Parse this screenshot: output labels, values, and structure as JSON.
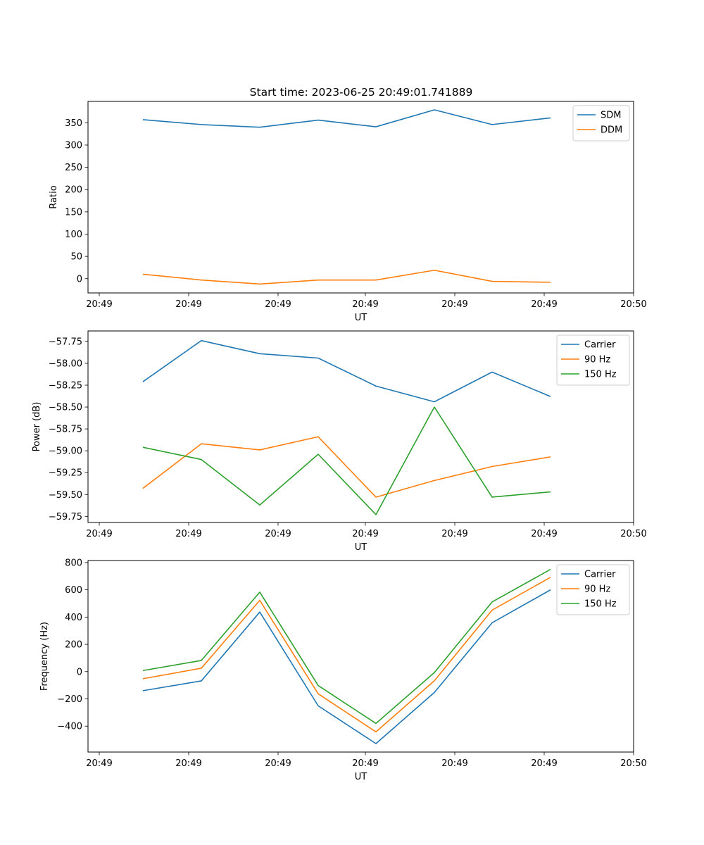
{
  "figure": {
    "title": "Start time: 2023-06-25 20:49:01.741889"
  },
  "chart_data": [
    {
      "type": "line",
      "ylabel": "Ratio",
      "xlabel": "UT",
      "ylim": [
        -32,
        398
      ],
      "yticks": [
        "0",
        "50",
        "100",
        "150",
        "200",
        "250",
        "300",
        "350"
      ],
      "ytick_values": [
        0,
        50,
        100,
        150,
        200,
        250,
        300,
        350
      ],
      "xtick_labels": [
        "20:49",
        "20:49",
        "20:49",
        "20:49",
        "20:49",
        "20:49",
        "20:50"
      ],
      "legend_position": "upper-right",
      "series": [
        {
          "name": "SDM",
          "color": "#1f77b4",
          "values": [
            357,
            346,
            340,
            356,
            341,
            379,
            346,
            361
          ]
        },
        {
          "name": "DDM",
          "color": "#ff7f0e",
          "values": [
            10,
            -3,
            -12,
            -3,
            -3,
            19,
            -6,
            -8
          ]
        }
      ]
    },
    {
      "type": "line",
      "ylabel": "Power (dB)",
      "xlabel": "UT",
      "ylim": [
        -59.82,
        -57.63
      ],
      "yticks": [
        "−57.75",
        "−58.00",
        "−58.25",
        "−58.50",
        "−58.75",
        "−59.00",
        "−59.25",
        "−59.50",
        "−59.75"
      ],
      "ytick_values": [
        -57.75,
        -58.0,
        -58.25,
        -58.5,
        -58.75,
        -59.0,
        -59.25,
        -59.5,
        -59.75
      ],
      "xtick_labels": [
        "20:49",
        "20:49",
        "20:49",
        "20:49",
        "20:49",
        "20:49",
        "20:50"
      ],
      "legend_position": "upper-right",
      "series": [
        {
          "name": "Carrier",
          "color": "#1f77b4",
          "values": [
            -58.21,
            -57.74,
            -57.89,
            -57.94,
            -58.26,
            -58.44,
            -58.1,
            -58.38
          ]
        },
        {
          "name": "90 Hz",
          "color": "#ff7f0e",
          "values": [
            -59.43,
            -58.92,
            -58.99,
            -58.84,
            -59.53,
            -59.34,
            -59.18,
            -59.07
          ]
        },
        {
          "name": "150 Hz",
          "color": "#2ca02c",
          "values": [
            -58.96,
            -59.1,
            -59.62,
            -59.04,
            -59.73,
            -58.5,
            -59.53,
            -59.47
          ]
        }
      ]
    },
    {
      "type": "line",
      "ylabel": "Frequency (Hz)",
      "xlabel": "UT",
      "ylim": [
        -590,
        815
      ],
      "yticks": [
        "−400",
        "−200",
        "0",
        "200",
        "400",
        "600",
        "800"
      ],
      "ytick_values": [
        -400,
        -200,
        0,
        200,
        400,
        600,
        800
      ],
      "xtick_labels": [
        "20:49",
        "20:49",
        "20:49",
        "20:49",
        "20:49",
        "20:49",
        "20:50"
      ],
      "legend_position": "upper-right",
      "series": [
        {
          "name": "Carrier",
          "color": "#1f77b4",
          "values": [
            -140,
            -68,
            437,
            -251,
            -528,
            -153,
            358,
            600
          ]
        },
        {
          "name": "90 Hz",
          "color": "#ff7f0e",
          "values": [
            -52,
            25,
            523,
            -163,
            -442,
            -67,
            451,
            692
          ]
        },
        {
          "name": "150 Hz",
          "color": "#2ca02c",
          "values": [
            8,
            82,
            583,
            -102,
            -380,
            -7,
            511,
            750
          ]
        }
      ]
    }
  ]
}
